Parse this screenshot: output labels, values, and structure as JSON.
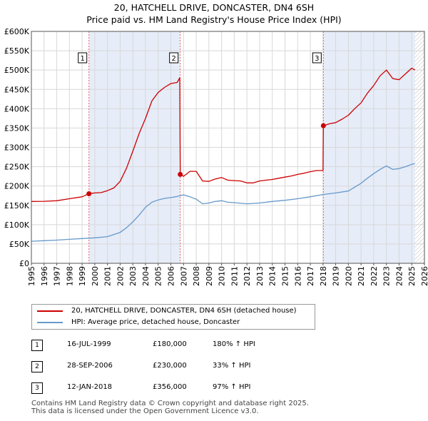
{
  "chart_data": {
    "type": "line",
    "title_line1": "20, HATCHELL DRIVE, DONCASTER, DN4 6SH",
    "title_line2": "Price paid vs. HM Land Registry's House Price Index (HPI)",
    "xlabel": "",
    "ylabel": "",
    "xlim": [
      1995,
      2026
    ],
    "ylim": [
      0,
      600000
    ],
    "y_ticks": [
      {
        "value": 0,
        "label": "£0"
      },
      {
        "value": 50000,
        "label": "£50K"
      },
      {
        "value": 100000,
        "label": "£100K"
      },
      {
        "value": 150000,
        "label": "£150K"
      },
      {
        "value": 200000,
        "label": "£200K"
      },
      {
        "value": 250000,
        "label": "£250K"
      },
      {
        "value": 300000,
        "label": "£300K"
      },
      {
        "value": 350000,
        "label": "£350K"
      },
      {
        "value": 400000,
        "label": "£400K"
      },
      {
        "value": 450000,
        "label": "£450K"
      },
      {
        "value": 500000,
        "label": "£500K"
      },
      {
        "value": 550000,
        "label": "£550K"
      },
      {
        "value": 600000,
        "label": "£600K"
      }
    ],
    "x_ticks": [
      "1995",
      "1996",
      "1997",
      "1998",
      "1999",
      "2000",
      "2001",
      "2002",
      "2003",
      "2004",
      "2005",
      "2006",
      "2007",
      "2008",
      "2009",
      "2010",
      "2011",
      "2012",
      "2013",
      "2014",
      "2015",
      "2016",
      "2017",
      "2018",
      "2019",
      "2020",
      "2021",
      "2022",
      "2023",
      "2024",
      "2025",
      "2026"
    ],
    "grid": true,
    "shaded_ranges": [
      [
        1999.54,
        2006.74
      ],
      [
        2018.03,
        2025.25
      ]
    ],
    "hatched_from": 2025.25,
    "series": [
      {
        "name": "20, HATCHELL DRIVE, DONCASTER, DN4 6SH (detached house)",
        "color": "#cc0000",
        "x": [
          1995.0,
          1996.0,
          1997.0,
          1998.0,
          1999.0,
          1999.54,
          2000.0,
          2000.5,
          2001.0,
          2001.5,
          2002.0,
          2002.5,
          2003.0,
          2003.5,
          2004.0,
          2004.5,
          2005.0,
          2005.5,
          2006.0,
          2006.5,
          2006.7,
          2006.74,
          2007.0,
          2007.5,
          2008.0,
          2008.5,
          2009.0,
          2009.5,
          2010.0,
          2010.5,
          2011.0,
          2011.5,
          2012.0,
          2012.5,
          2013.0,
          2013.5,
          2014.0,
          2014.5,
          2015.0,
          2015.5,
          2016.0,
          2016.5,
          2017.0,
          2017.5,
          2018.0,
          2018.03,
          2018.5,
          2019.0,
          2019.5,
          2020.0,
          2020.5,
          2021.0,
          2021.5,
          2022.0,
          2022.5,
          2023.0,
          2023.5,
          2024.0,
          2024.5,
          2025.0,
          2025.25
        ],
        "values": [
          160000,
          160500,
          162000,
          167000,
          172000,
          180000,
          182000,
          183000,
          188000,
          195000,
          212000,
          246000,
          290000,
          336000,
          375000,
          420000,
          442000,
          455000,
          465000,
          468000,
          480000,
          230000,
          225000,
          238000,
          238000,
          213000,
          212000,
          218000,
          222000,
          215000,
          214000,
          213000,
          208000,
          208000,
          213000,
          215000,
          217000,
          220000,
          223000,
          226000,
          230000,
          233000,
          237000,
          240000,
          240000,
          356000,
          361000,
          364000,
          373000,
          383000,
          400000,
          415000,
          440000,
          460000,
          485000,
          500000,
          478000,
          475000,
          490000,
          505000,
          500000
        ]
      },
      {
        "name": "HPI: Average price, detached house, Doncaster",
        "color": "#6699cc",
        "x": [
          1995.0,
          1996.0,
          1997.0,
          1998.0,
          1999.0,
          2000.0,
          2001.0,
          2002.0,
          2002.5,
          2003.0,
          2003.5,
          2004.0,
          2004.5,
          2005.0,
          2005.5,
          2006.0,
          2006.5,
          2007.0,
          2007.5,
          2008.0,
          2008.5,
          2009.0,
          2009.5,
          2010.0,
          2010.5,
          2011.0,
          2012.0,
          2013.0,
          2014.0,
          2015.0,
          2016.0,
          2017.0,
          2018.0,
          2019.0,
          2020.0,
          2020.5,
          2021.0,
          2021.5,
          2022.0,
          2022.5,
          2023.0,
          2023.5,
          2024.0,
          2024.5,
          2025.0,
          2025.25
        ],
        "values": [
          57000,
          58500,
          60000,
          62000,
          64000,
          66000,
          69000,
          80000,
          92000,
          107000,
          125000,
          145000,
          158000,
          164000,
          168000,
          170000,
          173000,
          177000,
          172000,
          166000,
          154000,
          156000,
          160000,
          162000,
          158000,
          157000,
          154000,
          156000,
          160000,
          163000,
          167000,
          172000,
          178000,
          182000,
          187000,
          197000,
          207000,
          220000,
          232000,
          243000,
          252000,
          243000,
          245000,
          250000,
          256000,
          258000
        ]
      }
    ],
    "sale_markers": [
      {
        "label": "1",
        "x": 1999.54,
        "y": 180000
      },
      {
        "label": "2",
        "x": 2006.74,
        "y": 230000
      },
      {
        "label": "3",
        "x": 2018.03,
        "y": 356000
      }
    ]
  },
  "legend": {
    "items": [
      {
        "label": "20, HATCHELL DRIVE, DONCASTER, DN4 6SH (detached house)",
        "color": "#cc0000"
      },
      {
        "label": "HPI: Average price, detached house, Doncaster",
        "color": "#6699cc"
      }
    ]
  },
  "sales_table": [
    {
      "num": "1",
      "date": "16-JUL-1999",
      "price": "£180,000",
      "hpi": "180% ↑ HPI"
    },
    {
      "num": "2",
      "date": "28-SEP-2006",
      "price": "£230,000",
      "hpi": "33% ↑ HPI"
    },
    {
      "num": "3",
      "date": "12-JAN-2018",
      "price": "£356,000",
      "hpi": "97% ↑ HPI"
    }
  ],
  "footer": {
    "line1": "Contains HM Land Registry data © Crown copyright and database right 2025.",
    "line2": "This data is licensed under the Open Government Licence v3.0."
  }
}
